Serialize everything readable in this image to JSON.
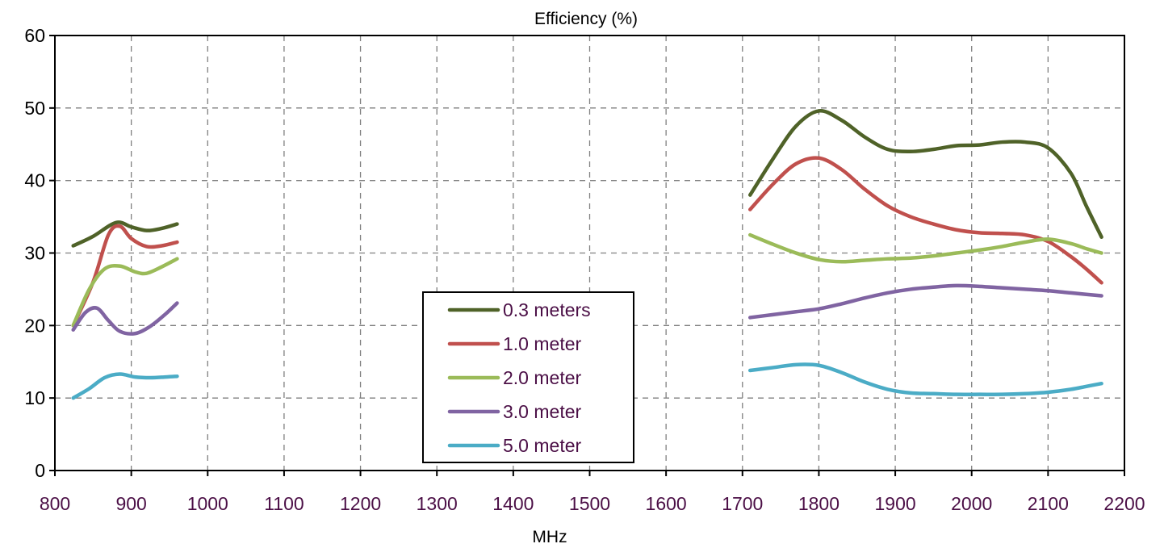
{
  "chart_data": {
    "type": "line",
    "title": "Efficiency (%)",
    "xlabel": "MHz",
    "ylabel": "",
    "xlim": [
      800,
      2200
    ],
    "ylim": [
      0,
      60
    ],
    "xticks": [
      800,
      900,
      1000,
      1100,
      1200,
      1300,
      1400,
      1500,
      1600,
      1700,
      1800,
      1900,
      2000,
      2100,
      2200
    ],
    "yticks": [
      0,
      10,
      20,
      30,
      40,
      50,
      60
    ],
    "grid": true,
    "legend_position": "center-bottom",
    "series": [
      {
        "name": "0.3 meters",
        "color": "#4f6228",
        "segments": [
          [
            [
              824,
              31
            ],
            [
              850,
              32.3
            ],
            [
              880,
              34.2
            ],
            [
              900,
              33.6
            ],
            [
              920,
              33.1
            ],
            [
              940,
              33.4
            ],
            [
              960,
              34
            ]
          ],
          [
            [
              1710,
              38
            ],
            [
              1740,
              43
            ],
            [
              1770,
              47.5
            ],
            [
              1800,
              49.6
            ],
            [
              1830,
              48.3
            ],
            [
              1860,
              46
            ],
            [
              1890,
              44.3
            ],
            [
              1920,
              44
            ],
            [
              1950,
              44.3
            ],
            [
              1980,
              44.8
            ],
            [
              2010,
              44.9
            ],
            [
              2040,
              45.3
            ],
            [
              2070,
              45.3
            ],
            [
              2100,
              44.5
            ],
            [
              2130,
              41
            ],
            [
              2150,
              36.5
            ],
            [
              2170,
              32.2
            ]
          ]
        ]
      },
      {
        "name": "1.0 meter",
        "color": "#c0504d",
        "segments": [
          [
            [
              824,
              20
            ],
            [
              850,
              26
            ],
            [
              870,
              32.5
            ],
            [
              885,
              33.7
            ],
            [
              900,
              32
            ],
            [
              920,
              30.9
            ],
            [
              940,
              31
            ],
            [
              960,
              31.5
            ]
          ],
          [
            [
              1710,
              36
            ],
            [
              1740,
              39.5
            ],
            [
              1770,
              42.3
            ],
            [
              1800,
              43.1
            ],
            [
              1830,
              41.5
            ],
            [
              1860,
              38.8
            ],
            [
              1890,
              36.5
            ],
            [
              1920,
              35
            ],
            [
              1950,
              34
            ],
            [
              1980,
              33.2
            ],
            [
              2010,
              32.8
            ],
            [
              2040,
              32.7
            ],
            [
              2070,
              32.5
            ],
            [
              2100,
              31.6
            ],
            [
              2130,
              29.5
            ],
            [
              2150,
              27.8
            ],
            [
              2170,
              25.9
            ]
          ]
        ]
      },
      {
        "name": "2.0 meter",
        "color": "#9bbb59",
        "segments": [
          [
            [
              824,
              20
            ],
            [
              845,
              25
            ],
            [
              865,
              27.8
            ],
            [
              885,
              28.2
            ],
            [
              905,
              27.4
            ],
            [
              920,
              27.2
            ],
            [
              940,
              28.1
            ],
            [
              960,
              29.2
            ]
          ],
          [
            [
              1710,
              32.5
            ],
            [
              1740,
              31.2
            ],
            [
              1770,
              30
            ],
            [
              1800,
              29.1
            ],
            [
              1830,
              28.8
            ],
            [
              1860,
              29
            ],
            [
              1890,
              29.2
            ],
            [
              1920,
              29.3
            ],
            [
              1950,
              29.6
            ],
            [
              1980,
              30
            ],
            [
              2010,
              30.4
            ],
            [
              2040,
              30.9
            ],
            [
              2070,
              31.5
            ],
            [
              2100,
              31.9
            ],
            [
              2130,
              31.3
            ],
            [
              2150,
              30.6
            ],
            [
              2170,
              30
            ]
          ]
        ]
      },
      {
        "name": "3.0 meter",
        "color": "#8064a2",
        "segments": [
          [
            [
              824,
              19.4
            ],
            [
              840,
              21.8
            ],
            [
              855,
              22.4
            ],
            [
              870,
              20.7
            ],
            [
              885,
              19.2
            ],
            [
              905,
              18.9
            ],
            [
              925,
              19.9
            ],
            [
              945,
              21.6
            ],
            [
              960,
              23.1
            ]
          ],
          [
            [
              1710,
              21.1
            ],
            [
              1740,
              21.5
            ],
            [
              1770,
              21.9
            ],
            [
              1800,
              22.3
            ],
            [
              1830,
              23
            ],
            [
              1860,
              23.8
            ],
            [
              1890,
              24.5
            ],
            [
              1920,
              25
            ],
            [
              1950,
              25.3
            ],
            [
              1980,
              25.5
            ],
            [
              2010,
              25.4
            ],
            [
              2040,
              25.2
            ],
            [
              2070,
              25
            ],
            [
              2100,
              24.8
            ],
            [
              2130,
              24.5
            ],
            [
              2170,
              24.1
            ]
          ]
        ]
      },
      {
        "name": "5.0 meter",
        "color": "#4bacc6",
        "segments": [
          [
            [
              824,
              10
            ],
            [
              845,
              11.3
            ],
            [
              865,
              12.8
            ],
            [
              885,
              13.3
            ],
            [
              905,
              12.9
            ],
            [
              925,
              12.8
            ],
            [
              945,
              12.9
            ],
            [
              960,
              13
            ]
          ],
          [
            [
              1710,
              13.8
            ],
            [
              1740,
              14.2
            ],
            [
              1770,
              14.6
            ],
            [
              1800,
              14.5
            ],
            [
              1830,
              13.5
            ],
            [
              1860,
              12.2
            ],
            [
              1890,
              11.2
            ],
            [
              1920,
              10.7
            ],
            [
              1950,
              10.6
            ],
            [
              1980,
              10.5
            ],
            [
              2010,
              10.5
            ],
            [
              2040,
              10.5
            ],
            [
              2070,
              10.6
            ],
            [
              2100,
              10.8
            ],
            [
              2130,
              11.2
            ],
            [
              2150,
              11.6
            ],
            [
              2170,
              12
            ]
          ]
        ]
      }
    ]
  }
}
